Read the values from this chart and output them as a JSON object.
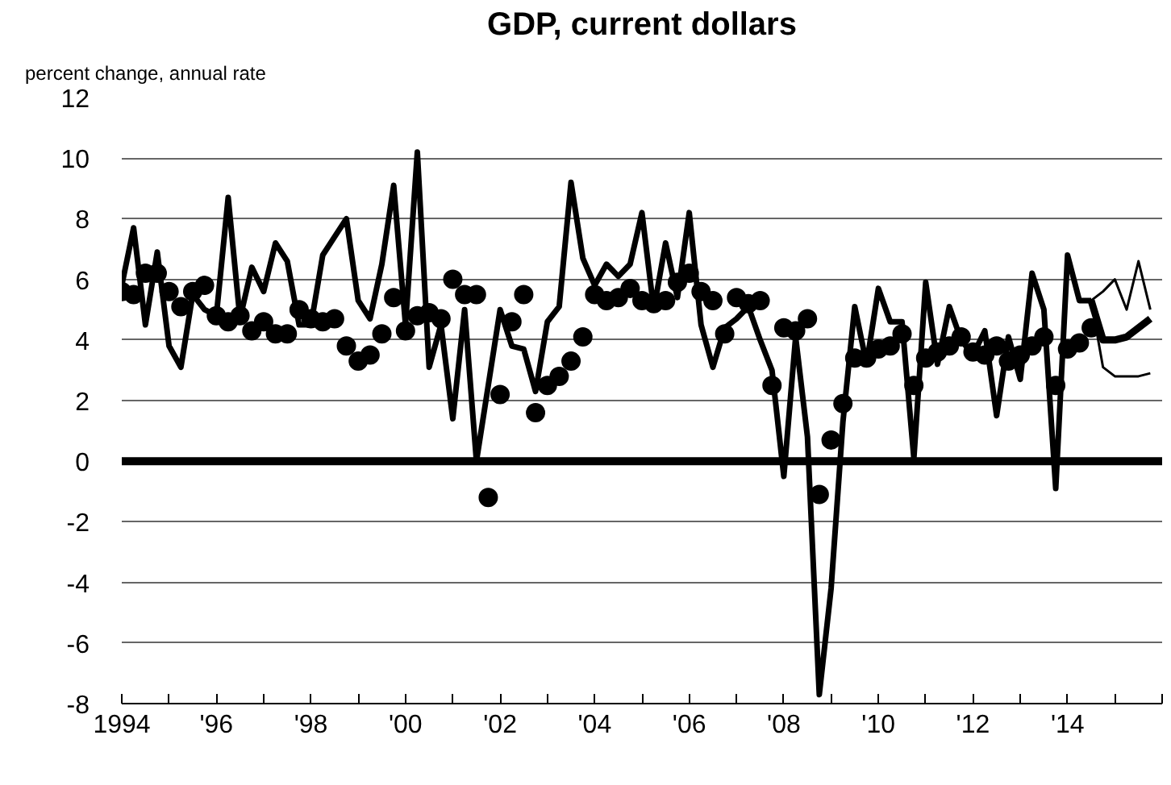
{
  "chart_data": {
    "type": "line",
    "title": "GDP, current dollars",
    "ylabel": "percent change, annual rate",
    "xlim": [
      1994,
      2016
    ],
    "xticks": [
      {
        "value": 1994,
        "label": "1994"
      },
      {
        "value": 1995,
        "label": null
      },
      {
        "value": 1996,
        "label": "'96"
      },
      {
        "value": 1997,
        "label": null
      },
      {
        "value": 1998,
        "label": "'98"
      },
      {
        "value": 1999,
        "label": null
      },
      {
        "value": 2000,
        "label": "'00"
      },
      {
        "value": 2001,
        "label": null
      },
      {
        "value": 2002,
        "label": "'02"
      },
      {
        "value": 2003,
        "label": null
      },
      {
        "value": 2004,
        "label": "'04"
      },
      {
        "value": 2005,
        "label": null
      },
      {
        "value": 2006,
        "label": "'06"
      },
      {
        "value": 2007,
        "label": null
      },
      {
        "value": 2008,
        "label": "'08"
      },
      {
        "value": 2009,
        "label": null
      },
      {
        "value": 2010,
        "label": "'10"
      },
      {
        "value": 2011,
        "label": null
      },
      {
        "value": 2012,
        "label": "'12"
      },
      {
        "value": 2013,
        "label": null
      },
      {
        "value": 2014,
        "label": "'14"
      },
      {
        "value": 2015,
        "label": null
      },
      {
        "value": 2016,
        "label": null
      }
    ],
    "ylim": [
      -8,
      12
    ],
    "yticks": [
      -8,
      -6,
      -4,
      -2,
      0,
      2,
      4,
      6,
      8,
      10,
      12
    ],
    "grid": "y",
    "ref_lines": [
      {
        "axis": "y",
        "value": 0,
        "color": "#000000"
      }
    ],
    "x": [
      1994.0,
      1994.25,
      1994.5,
      1994.75,
      1995.0,
      1995.25,
      1995.5,
      1995.75,
      1996.0,
      1996.25,
      1996.5,
      1996.75,
      1997.0,
      1997.25,
      1997.5,
      1997.75,
      1998.0,
      1998.25,
      1998.5,
      1998.75,
      1999.0,
      1999.25,
      1999.5,
      1999.75,
      2000.0,
      2000.25,
      2000.5,
      2000.75,
      2001.0,
      2001.25,
      2001.5,
      2001.75,
      2002.0,
      2002.25,
      2002.5,
      2002.75,
      2003.0,
      2003.25,
      2003.5,
      2003.75,
      2004.0,
      2004.25,
      2004.5,
      2004.75,
      2005.0,
      2005.25,
      2005.5,
      2005.75,
      2006.0,
      2006.25,
      2006.5,
      2006.75,
      2007.0,
      2007.25,
      2007.5,
      2007.75,
      2008.0,
      2008.25,
      2008.5,
      2008.75,
      2009.0,
      2009.25,
      2009.5,
      2009.75,
      2010.0,
      2010.25,
      2010.5,
      2010.75,
      2011.0,
      2011.25,
      2011.5,
      2011.75,
      2012.0,
      2012.25,
      2012.5,
      2012.75,
      2013.0,
      2013.25,
      2013.5,
      2013.75,
      2014.0,
      2014.25,
      2014.5
    ],
    "series": [
      {
        "color": "#000000",
        "values": [
          5.8,
          7.7,
          4.5,
          6.9,
          3.8,
          3.1,
          5.5,
          5.0,
          4.8,
          8.7,
          4.7,
          6.4,
          5.6,
          7.2,
          6.6,
          4.5,
          4.5,
          6.8,
          7.4,
          8.0,
          5.3,
          4.7,
          6.5,
          9.1,
          4.5,
          10.2,
          3.1,
          4.5,
          1.4,
          5.0,
          0.0,
          2.5,
          5.0,
          3.8,
          3.7,
          2.3,
          4.6,
          5.1,
          9.2,
          6.7,
          5.8,
          6.5,
          6.1,
          6.5,
          8.2,
          5.0,
          7.2,
          5.4,
          8.2,
          4.5,
          3.1,
          4.4,
          4.7,
          5.1,
          4.0,
          3.0,
          -0.5,
          4.1,
          0.8,
          -7.7,
          -4.2,
          1.3,
          5.1,
          3.2,
          5.7,
          4.6,
          4.6,
          0.1,
          5.9,
          3.2,
          5.1,
          4.0,
          3.5,
          4.3,
          1.5,
          4.1,
          2.7,
          6.2,
          5.0,
          -0.9,
          6.8,
          5.3,
          5.3
        ]
      },
      {
        "type": "scatter",
        "color": "#000000",
        "values": [
          5.6,
          5.5,
          6.2,
          6.2,
          5.6,
          5.1,
          5.6,
          5.8,
          4.8,
          4.6,
          4.8,
          4.3,
          4.6,
          4.2,
          4.2,
          5.0,
          4.7,
          4.6,
          4.7,
          3.8,
          3.3,
          3.5,
          4.2,
          5.4,
          4.3,
          4.8,
          4.9,
          4.7,
          6.0,
          5.5,
          5.5,
          -1.2,
          2.2,
          4.6,
          5.5,
          1.6,
          2.5,
          2.8,
          3.3,
          4.1,
          5.5,
          5.3,
          5.4,
          5.7,
          5.3,
          5.2,
          5.3,
          5.9,
          6.2,
          5.6,
          5.3,
          4.2,
          5.4,
          5.2,
          5.3,
          2.5,
          4.4,
          4.3,
          4.7,
          -1.1,
          0.7,
          1.9,
          3.4,
          3.4,
          3.7,
          3.8,
          4.2,
          2.5,
          3.4,
          3.6,
          3.8,
          4.1,
          3.6,
          3.5,
          3.8,
          3.3,
          3.5,
          3.8,
          4.1,
          2.5,
          3.7,
          3.9,
          4.4
        ]
      },
      {
        "color": "#000000",
        "x": [
          2014.5,
          2014.75,
          2015.0,
          2015.25,
          2015.5,
          2015.75
        ],
        "values": [
          5.3,
          4.0,
          4.0,
          4.1,
          4.4,
          4.7
        ]
      },
      {
        "color": "#000000",
        "x": [
          2014.5,
          2014.75,
          2015.0,
          2015.25,
          2015.5,
          2015.75
        ],
        "values": [
          5.3,
          5.6,
          6.0,
          5.0,
          6.6,
          5.0
        ]
      },
      {
        "color": "#000000",
        "x": [
          2014.5,
          2014.75,
          2015.0,
          2015.25,
          2015.5,
          2015.75
        ],
        "values": [
          5.3,
          3.1,
          2.8,
          2.8,
          2.8,
          2.9
        ]
      }
    ]
  }
}
